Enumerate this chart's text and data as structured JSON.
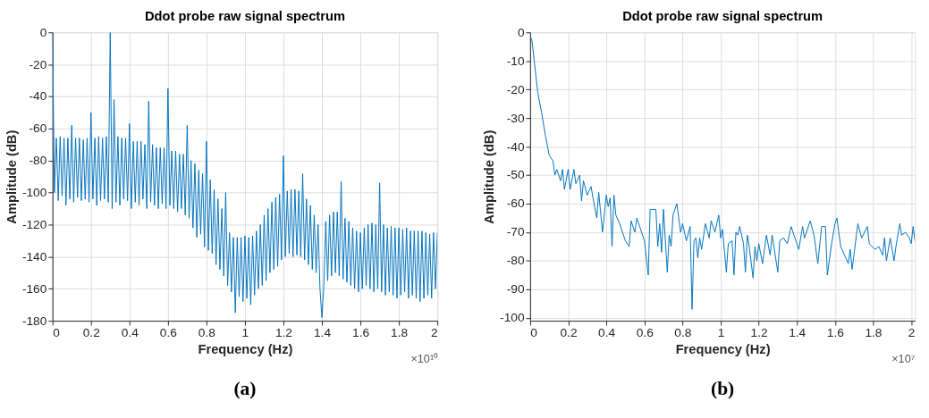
{
  "chart_data": [
    {
      "type": "line",
      "title": "Ddot probe raw signal spectrum",
      "xlabel": "Frequency (Hz)",
      "ylabel": "Amplitude (dB)",
      "annotations": [
        "×10¹⁰",
        "(a)"
      ],
      "xlim": [
        0,
        2
      ],
      "ylim": [
        -180,
        0
      ],
      "xticks": [
        0,
        0.2,
        0.4,
        0.6,
        0.8,
        1,
        1.2,
        1.4,
        1.6,
        1.8,
        2
      ],
      "yticks": [
        -180,
        -160,
        -140,
        -120,
        -100,
        -80,
        -60,
        -40,
        -20,
        0
      ],
      "grid": true,
      "marker": "none",
      "line_style": "solid",
      "series": [
        {
          "color": "#0072bd",
          "x": [
            0,
            0.01,
            0.02,
            0.03,
            0.04,
            0.05,
            0.06,
            0.07,
            0.08,
            0.09,
            0.1,
            0.11,
            0.12,
            0.13,
            0.14,
            0.15,
            0.16,
            0.17,
            0.18,
            0.19,
            0.2,
            0.21,
            0.22,
            0.23,
            0.24,
            0.25,
            0.26,
            0.27,
            0.28,
            0.29,
            0.3,
            0.31,
            0.32,
            0.33,
            0.34,
            0.35,
            0.36,
            0.37,
            0.38,
            0.39,
            0.4,
            0.41,
            0.42,
            0.43,
            0.44,
            0.45,
            0.46,
            0.47,
            0.48,
            0.49,
            0.5,
            0.51,
            0.52,
            0.53,
            0.54,
            0.55,
            0.56,
            0.57,
            0.58,
            0.59,
            0.6,
            0.61,
            0.62,
            0.63,
            0.64,
            0.65,
            0.66,
            0.67,
            0.68,
            0.69,
            0.7,
            0.71,
            0.72,
            0.73,
            0.74,
            0.75,
            0.76,
            0.77,
            0.78,
            0.79,
            0.8,
            0.81,
            0.82,
            0.83,
            0.84,
            0.85,
            0.86,
            0.87,
            0.88,
            0.89,
            0.9,
            0.91,
            0.92,
            0.93,
            0.94,
            0.95,
            0.96,
            0.97,
            0.98,
            0.99,
            1.0,
            1.01,
            1.02,
            1.03,
            1.04,
            1.05,
            1.06,
            1.07,
            1.08,
            1.09,
            1.1,
            1.11,
            1.12,
            1.13,
            1.14,
            1.15,
            1.16,
            1.17,
            1.18,
            1.19,
            1.2,
            1.21,
            1.22,
            1.23,
            1.24,
            1.25,
            1.26,
            1.27,
            1.28,
            1.29,
            1.3,
            1.31,
            1.32,
            1.33,
            1.34,
            1.35,
            1.36,
            1.37,
            1.38,
            1.39,
            1.4,
            1.41,
            1.42,
            1.43,
            1.44,
            1.45,
            1.46,
            1.47,
            1.48,
            1.49,
            1.5,
            1.51,
            1.52,
            1.53,
            1.54,
            1.55,
            1.56,
            1.57,
            1.58,
            1.59,
            1.6,
            1.61,
            1.62,
            1.63,
            1.64,
            1.65,
            1.66,
            1.67,
            1.68,
            1.69,
            1.7,
            1.71,
            1.72,
            1.73,
            1.74,
            1.75,
            1.76,
            1.77,
            1.78,
            1.79,
            1.8,
            1.81,
            1.82,
            1.83,
            1.84,
            1.85,
            1.86,
            1.87,
            1.88,
            1.89,
            1.9,
            1.91,
            1.92,
            1.93,
            1.94,
            1.95,
            1.96,
            1.97,
            1.98,
            1.99,
            2.0
          ],
          "values": [
            0,
            -100,
            -66,
            -105,
            -65,
            -102,
            -66,
            -108,
            -66,
            -104,
            -58,
            -106,
            -66,
            -103,
            -66,
            -105,
            -67,
            -104,
            -66,
            -106,
            -50,
            -104,
            -66,
            -108,
            -65,
            -105,
            -66,
            -104,
            -65,
            -106,
            0,
            -110,
            -42,
            -106,
            -65,
            -108,
            -66,
            -104,
            -66,
            -105,
            -57,
            -110,
            -68,
            -106,
            -68,
            -108,
            -68,
            -104,
            -70,
            -110,
            -43,
            -106,
            -70,
            -108,
            -72,
            -110,
            -72,
            -107,
            -72,
            -110,
            -35,
            -108,
            -74,
            -110,
            -74,
            -112,
            -76,
            -110,
            -76,
            -114,
            -58,
            -116,
            -80,
            -122,
            -82,
            -128,
            -86,
            -126,
            -88,
            -134,
            -68,
            -136,
            -92,
            -138,
            -98,
            -145,
            -104,
            -148,
            -110,
            -152,
            -100,
            -158,
            -125,
            -162,
            -128,
            -175,
            -128,
            -165,
            -128,
            -168,
            -127,
            -166,
            -128,
            -170,
            -127,
            -164,
            -124,
            -160,
            -120,
            -158,
            -114,
            -155,
            -110,
            -150,
            -106,
            -148,
            -103,
            -146,
            -101,
            -142,
            -77,
            -140,
            -99,
            -138,
            -98,
            -140,
            -98,
            -139,
            -99,
            -140,
            -88,
            -142,
            -104,
            -145,
            -108,
            -148,
            -114,
            -150,
            -120,
            -160,
            -178,
            -158,
            -118,
            -155,
            -114,
            -152,
            -112,
            -150,
            -112,
            -152,
            -93,
            -154,
            -116,
            -156,
            -118,
            -158,
            -122,
            -160,
            -124,
            -162,
            -125,
            -160,
            -122,
            -158,
            -120,
            -160,
            -119,
            -162,
            -120,
            -160,
            -94,
            -162,
            -120,
            -164,
            -122,
            -162,
            -121,
            -164,
            -122,
            -166,
            -122,
            -164,
            -123,
            -162,
            -122,
            -166,
            -124,
            -164,
            -124,
            -166,
            -124,
            -168,
            -124,
            -166,
            -125,
            -164,
            -126,
            -166,
            -125,
            -160,
            -125
          ]
        }
      ]
    },
    {
      "type": "line",
      "title": "Ddot probe raw signal spectrum",
      "xlabel": "Frequency (Hz)",
      "ylabel": "Amplitude (dB)",
      "annotations": [
        "×10⁷",
        "(b)"
      ],
      "xlim": [
        0,
        2.02
      ],
      "ylim": [
        -101,
        0
      ],
      "xticks": [
        0,
        0.2,
        0.4,
        0.6,
        0.8,
        1,
        1.2,
        1.4,
        1.6,
        1.8,
        2
      ],
      "yticks": [
        -100,
        -90,
        -80,
        -70,
        -60,
        -50,
        -40,
        -30,
        -20,
        -10,
        0
      ],
      "grid": true,
      "marker": "none",
      "line_style": "solid",
      "series": [
        {
          "color": "#0072bd",
          "x": [
            0,
            0.01,
            0.02,
            0.03,
            0.04,
            0.06,
            0.08,
            0.1,
            0.12,
            0.13,
            0.14,
            0.16,
            0.17,
            0.18,
            0.2,
            0.21,
            0.23,
            0.24,
            0.26,
            0.27,
            0.28,
            0.3,
            0.32,
            0.33,
            0.35,
            0.36,
            0.38,
            0.4,
            0.41,
            0.42,
            0.43,
            0.44,
            0.45,
            0.47,
            0.48,
            0.5,
            0.52,
            0.53,
            0.55,
            0.56,
            0.6,
            0.62,
            0.63,
            0.66,
            0.67,
            0.68,
            0.69,
            0.7,
            0.72,
            0.73,
            0.74,
            0.75,
            0.77,
            0.79,
            0.8,
            0.82,
            0.84,
            0.85,
            0.86,
            0.87,
            0.88,
            0.89,
            0.9,
            0.92,
            0.94,
            0.95,
            0.97,
            0.99,
            1.0,
            1.01,
            1.03,
            1.04,
            1.06,
            1.07,
            1.08,
            1.09,
            1.1,
            1.12,
            1.13,
            1.14,
            1.15,
            1.17,
            1.18,
            1.19,
            1.2,
            1.22,
            1.24,
            1.26,
            1.27,
            1.3,
            1.31,
            1.33,
            1.35,
            1.36,
            1.37,
            1.4,
            1.41,
            1.43,
            1.44,
            1.47,
            1.49,
            1.51,
            1.53,
            1.55,
            1.56,
            1.58,
            1.6,
            1.61,
            1.63,
            1.65,
            1.67,
            1.68,
            1.69,
            1.72,
            1.74,
            1.77,
            1.78,
            1.81,
            1.83,
            1.85,
            1.86,
            1.87,
            1.89,
            1.91,
            1.92,
            1.94,
            1.95,
            1.97,
            1.99,
            2.0,
            2.01,
            2.02
          ],
          "values": [
            -1,
            -3,
            -9,
            -15,
            -21,
            -28,
            -36,
            -43,
            -45,
            -50,
            -48,
            -52,
            -48,
            -55,
            -48,
            -55,
            -48,
            -53,
            -50,
            -59,
            -52,
            -57,
            -54,
            -58,
            -65,
            -56,
            -70,
            -57,
            -61,
            -58,
            -75,
            -57,
            -64,
            -67,
            -69,
            -73,
            -75,
            -66,
            -70,
            -65,
            -73,
            -85,
            -62,
            -62,
            -75,
            -67,
            -77,
            -62,
            -84,
            -71,
            -75,
            -64,
            -60,
            -70,
            -67,
            -73,
            -68,
            -97,
            -73,
            -72,
            -79,
            -72,
            -76,
            -67,
            -72,
            -66,
            -70,
            -64,
            -72,
            -69,
            -84,
            -74,
            -73,
            -85,
            -70,
            -71,
            -68,
            -74,
            -84,
            -71,
            -75,
            -86,
            -75,
            -80,
            -74,
            -81,
            -71,
            -78,
            -71,
            -84,
            -73,
            -72,
            -74,
            -71,
            -68,
            -74,
            -76,
            -68,
            -72,
            -66,
            -71,
            -81,
            -68,
            -68,
            -85,
            -75,
            -67,
            -65,
            -75,
            -78,
            -81,
            -76,
            -83,
            -67,
            -72,
            -68,
            -74,
            -76,
            -75,
            -78,
            -72,
            -80,
            -72,
            -80,
            -75,
            -67,
            -71,
            -70,
            -72,
            -74,
            -68,
            -73
          ]
        }
      ]
    }
  ]
}
